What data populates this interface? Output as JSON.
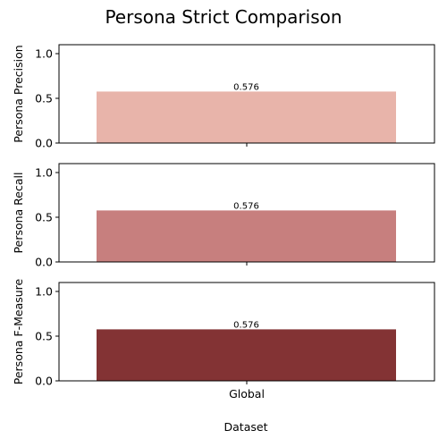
{
  "chart_data": {
    "title": "Persona Strict Comparison",
    "xlabel": "Dataset",
    "categories": [
      "Global"
    ],
    "panels": [
      {
        "type": "bar",
        "ylabel": "Persona Precision",
        "ylim": [
          0,
          1.1
        ],
        "yticks": [
          "0.0",
          "0.5",
          "1.0"
        ],
        "values": [
          0.576
        ],
        "data_labels": [
          "0.576"
        ],
        "color": "#e8b4aa"
      },
      {
        "type": "bar",
        "ylabel": "Persona Recall",
        "ylim": [
          0,
          1.1
        ],
        "yticks": [
          "0.0",
          "0.5",
          "1.0"
        ],
        "values": [
          0.576
        ],
        "data_labels": [
          "0.576"
        ],
        "color": "#c77f7e"
      },
      {
        "type": "bar",
        "ylabel": "Persona F-Measure",
        "ylim": [
          0,
          1.1
        ],
        "yticks": [
          "0.0",
          "0.5",
          "1.0"
        ],
        "values": [
          0.576
        ],
        "data_labels": [
          "0.576"
        ],
        "color": "#833334"
      }
    ],
    "grid": false,
    "legend": "none"
  }
}
